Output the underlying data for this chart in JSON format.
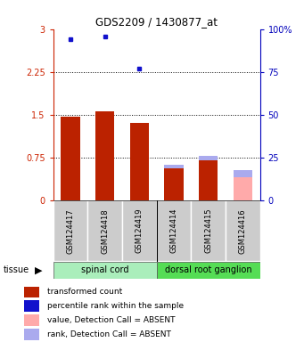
{
  "title": "GDS2209 / 1430877_at",
  "samples": [
    "GSM124417",
    "GSM124418",
    "GSM124419",
    "GSM124414",
    "GSM124415",
    "GSM124416"
  ],
  "red_values": [
    1.47,
    1.56,
    1.35,
    0.55,
    0.7,
    0.0
  ],
  "blue_markers": [
    2.82,
    2.87,
    2.3,
    null,
    null,
    null
  ],
  "absent_red": [
    null,
    null,
    null,
    null,
    null,
    0.4
  ],
  "absent_blue_on_red": [
    null,
    null,
    null,
    0.07,
    0.07,
    null
  ],
  "absent_blue_standalone": [
    null,
    null,
    null,
    null,
    null,
    0.13
  ],
  "ylim_left": [
    0,
    3.0
  ],
  "ylim_right": [
    0,
    100
  ],
  "yticks_left": [
    0,
    0.75,
    1.5,
    2.25,
    3.0
  ],
  "ytick_labels_left": [
    "0",
    "0.75",
    "1.5",
    "2.25",
    "3"
  ],
  "yticks_right": [
    0,
    25,
    50,
    75,
    100
  ],
  "ytick_labels_right": [
    "0",
    "25",
    "50",
    "75",
    "100%"
  ],
  "hlines": [
    0.75,
    1.5,
    2.25
  ],
  "bar_width": 0.55,
  "bar_color_red": "#bb2200",
  "bar_color_blue_marker": "#1111cc",
  "bar_color_absent_red": "#ffaaaa",
  "bar_color_absent_blue": "#aaaaee",
  "left_axis_color": "#cc2200",
  "right_axis_color": "#0000bb",
  "legend_items": [
    {
      "color": "#bb2200",
      "label": "transformed count"
    },
    {
      "color": "#1111cc",
      "label": "percentile rank within the sample"
    },
    {
      "color": "#ffaaaa",
      "label": "value, Detection Call = ABSENT"
    },
    {
      "color": "#aaaaee",
      "label": "rank, Detection Call = ABSENT"
    }
  ],
  "spinal_cord_color": "#aaeebb",
  "drg_color": "#55dd55",
  "figsize": [
    3.41,
    3.84
  ],
  "dpi": 100
}
